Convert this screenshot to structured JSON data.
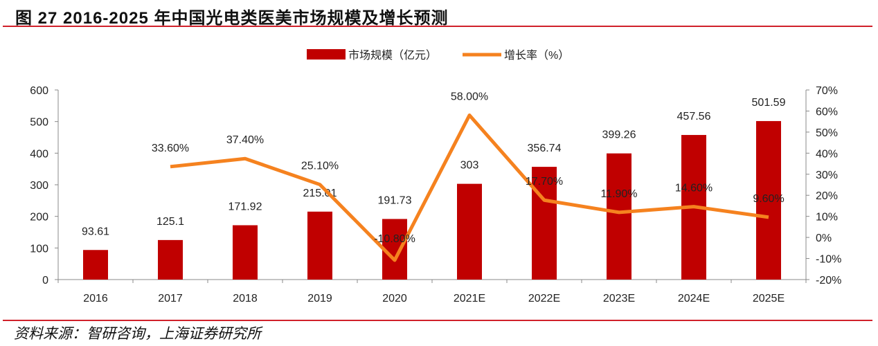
{
  "header": {
    "title": "图 27 2016-2025 年中国光电类医美市场规模及增长预测"
  },
  "footer": {
    "source": "资料来源：智研咨询，上海证券研究所"
  },
  "chart_data": {
    "type": "bar",
    "title": "图 27 2016-2025 年中国光电类医美市场规模及增长预测",
    "categories": [
      "2016",
      "2017",
      "2018",
      "2019",
      "2020",
      "2021E",
      "2022E",
      "2023E",
      "2024E",
      "2025E"
    ],
    "series": [
      {
        "name": "市场规模（亿元）",
        "type": "bar",
        "axis": "left",
        "color": "#C00000",
        "values": [
          93.61,
          125.1,
          171.92,
          215.01,
          191.73,
          303,
          356.74,
          399.26,
          457.56,
          501.59
        ],
        "labels": [
          "93.61",
          "125.1",
          "171.92",
          "215.01",
          "191.73",
          "303",
          "356.74",
          "399.26",
          "457.56",
          "501.59"
        ]
      },
      {
        "name": "增长率（%）",
        "type": "line",
        "axis": "right",
        "color": "#F5821F",
        "values": [
          null,
          33.6,
          37.4,
          25.1,
          -10.8,
          58.0,
          17.7,
          11.9,
          14.6,
          9.6
        ],
        "labels": [
          "",
          "33.60%",
          "37.40%",
          "25.10%",
          "-10.80%",
          "58.00%",
          "17.70%",
          "11.90%",
          "14.60%",
          "9.60%"
        ]
      }
    ],
    "ylim": [
      0,
      600
    ],
    "yticks": [
      "0",
      "100",
      "200",
      "300",
      "400",
      "500",
      "600"
    ],
    "y2lim": [
      -20,
      70
    ],
    "y2ticks": [
      "-20%",
      "-10%",
      "0%",
      "10%",
      "20%",
      "30%",
      "40%",
      "50%",
      "60%",
      "70%"
    ],
    "legend": "top-center",
    "grid": false
  }
}
